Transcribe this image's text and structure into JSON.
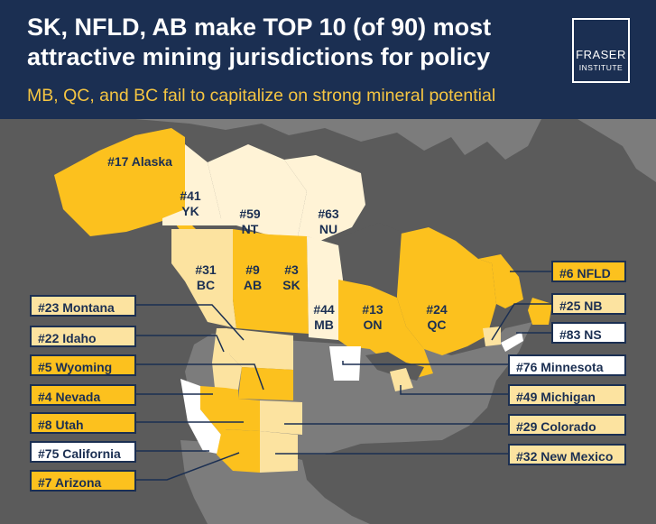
{
  "title": "SK, NFLD, AB make TOP 10 (of 90) most attractive mining jurisdictions for policy",
  "subtitle": "MB, QC, and BC fail to capitalize on strong mineral potential",
  "logo": {
    "line1": "FRASER",
    "line2": "INSTITUTE"
  },
  "colors": {
    "header": "#1b2f52",
    "subtitle": "#f5c542",
    "top_rank": "#fcc11e",
    "mid_rank": "#fce3a0",
    "low_rank": "#ffffff",
    "unranked_land": "#7c7c7c",
    "water": "#5b5b5b"
  },
  "legend_ranks": {
    "map_regions": {
      "alaska": "#17 Alaska",
      "yk_rank": "#41",
      "yk": "YK",
      "nt_rank": "#59",
      "nt": "NT",
      "nu_rank": "#63",
      "nu": "NU",
      "bc_rank": "#31",
      "bc": "BC",
      "ab_rank": "#9",
      "ab": "AB",
      "sk_rank": "#3",
      "sk": "SK",
      "mb_rank": "#44",
      "mb": "MB",
      "on_rank": "#13",
      "on": "ON",
      "qc_rank": "#24",
      "qc": "QC"
    }
  },
  "callouts": {
    "montana": "#23 Montana",
    "idaho": "#22 Idaho",
    "wyoming": "#5 Wyoming",
    "nevada": "#4 Nevada",
    "utah": "#8 Utah",
    "california": "#75 California",
    "arizona": "#7 Arizona",
    "nfld": "#6 NFLD",
    "nb": "#25 NB",
    "ns": "#83 NS",
    "minnesota": "#76 Minnesota",
    "michigan": "#49 Michigan",
    "colorado": "#29 Colorado",
    "new_mexico": "#32 New Mexico"
  }
}
